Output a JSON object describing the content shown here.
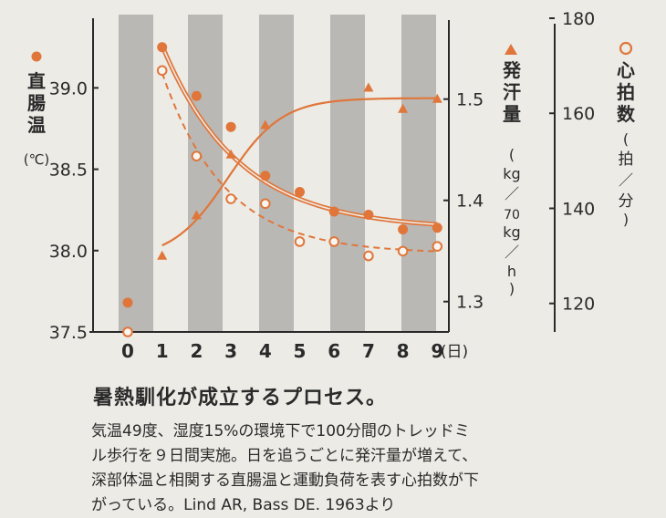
{
  "chart_data": {
    "type": "line",
    "x": [
      0,
      1,
      2,
      3,
      4,
      5,
      6,
      7,
      8,
      9
    ],
    "x_unit": "(日)",
    "xlim": [
      0,
      9
    ],
    "axes": {
      "rectal_temp": {
        "ylim": [
          37.5,
          39.4
        ],
        "ticks": [
          "37.5",
          "38.0",
          "38.5",
          "39.0"
        ],
        "label": "直腸温",
        "unit": "(℃)"
      },
      "sweat": {
        "ylim": [
          1.27,
          1.57
        ],
        "ticks": [
          "1.3",
          "1.4",
          "1.5"
        ],
        "label": "発汗量",
        "unit": "(kg/70kg/h)"
      },
      "heart_rate": {
        "ylim": [
          114,
          180
        ],
        "ticks": [
          "120",
          "140",
          "160",
          "180"
        ],
        "label": "心拍数",
        "unit": "(拍/分)"
      }
    },
    "series": [
      {
        "name": "直腸温",
        "marker": "filled-circle",
        "axis": "rectal_temp",
        "points": [
          [
            0,
            37.68
          ],
          [
            1,
            39.25
          ],
          [
            2,
            38.95
          ],
          [
            3,
            38.76
          ],
          [
            4,
            38.46
          ],
          [
            5,
            38.36
          ],
          [
            6,
            38.24
          ],
          [
            7,
            38.22
          ],
          [
            8,
            38.13
          ],
          [
            9,
            38.14
          ]
        ]
      },
      {
        "name": "発汗量",
        "marker": "triangle",
        "axis": "sweat",
        "points": [
          [
            1,
            1.345
          ],
          [
            2,
            1.385
          ],
          [
            3,
            1.445
          ],
          [
            4,
            1.474
          ],
          [
            7,
            1.511
          ],
          [
            8,
            1.49
          ],
          [
            9,
            1.5
          ]
        ]
      },
      {
        "name": "心拍数",
        "marker": "open-circle",
        "axis": "heart_rate",
        "points": [
          [
            0,
            114
          ],
          [
            1,
            169
          ],
          [
            2,
            151
          ],
          [
            3,
            142
          ],
          [
            4,
            141
          ],
          [
            5,
            133
          ],
          [
            6,
            133
          ],
          [
            7,
            130
          ],
          [
            8,
            131
          ],
          [
            9,
            132
          ]
        ]
      }
    ],
    "colors": {
      "accent": "#e0763a",
      "bands": "#b9b8b5",
      "background": "#ecebe6",
      "axis": "#2a2a2a"
    },
    "grid": false
  },
  "caption": {
    "title": "暑熱馴化が成立するプロセス。",
    "lines": [
      "気温49度、湿度15%の環境下で100分間のトレッドミ",
      "ル歩行を９日間実施。日を追うごとに発汗量が増えて、",
      "深部体温と相関する直腸温と運動負荷を表す心拍数が下",
      "がっている。Lind AR, Bass DE. 1963より"
    ]
  }
}
